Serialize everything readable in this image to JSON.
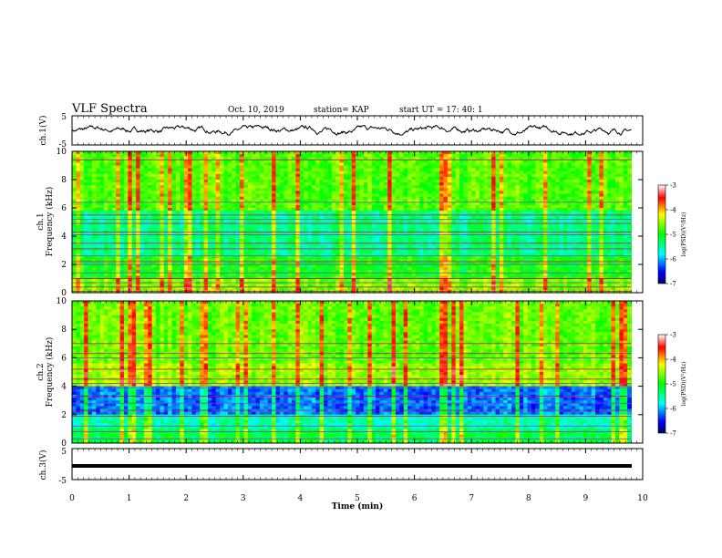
{
  "header": {
    "title": "VLF Spectra",
    "date": "Oct. 10, 2019",
    "station": "station= KAP",
    "start_ut": "start  UT  =    17: 40: 1"
  },
  "chart_data": [
    {
      "type": "line",
      "name": "ch1-waveform",
      "ylabel": "ch.1(V)",
      "ylim": [
        -5,
        5
      ],
      "yticks": [
        "5",
        "-5"
      ],
      "xlim": [
        0,
        10
      ],
      "description_value_range": [
        -1.0,
        1.2
      ]
    },
    {
      "type": "heatmap",
      "name": "ch1-spectrogram",
      "ylabel_top": "ch.1",
      "ylabel": "Frequency (kHz)",
      "ylim": [
        0,
        10
      ],
      "yticks": [
        "0",
        "2",
        "4",
        "6",
        "8",
        "10"
      ],
      "xlim": [
        0,
        9.8
      ],
      "colorbar": {
        "label": "log(PSD)(V²/Hz)",
        "range": [
          -7,
          -3
        ],
        "ticks": [
          "-3",
          "-4",
          "-5",
          "-6",
          "-7"
        ]
      },
      "bands_khz": [
        0.1,
        0.4,
        0.7,
        1.0,
        1.4,
        2.0,
        2.2,
        2.6,
        3.1,
        3.5,
        4.1,
        4.3,
        4.9,
        5.2,
        5.5,
        6.4,
        9.4
      ]
    },
    {
      "type": "heatmap",
      "name": "ch2-spectrogram",
      "ylabel_top": "ch.2",
      "ylabel": "Frequency (kHz)",
      "ylim": [
        0,
        10
      ],
      "yticks": [
        "0",
        "2",
        "4",
        "6",
        "8",
        "10"
      ],
      "xlim": [
        0,
        9.8
      ],
      "colorbar": {
        "label": "log(PSD)(V²/Hz)",
        "range": [
          -7,
          -3
        ],
        "ticks": [
          "-3",
          "-4",
          "-5",
          "-6",
          "-7"
        ]
      },
      "bands_khz": [
        0.3,
        0.8,
        1.2,
        1.9,
        2.3,
        2.8,
        3.3,
        3.9,
        4.2,
        4.5,
        5.2,
        6.0,
        6.3,
        7.0
      ]
    },
    {
      "type": "line",
      "name": "ch3-waveform",
      "ylabel": "ch.3(V)",
      "ylim": [
        -5,
        5
      ],
      "yticks": [
        "5",
        "-5"
      ],
      "xlim": [
        0,
        9.8
      ],
      "constant_value": 0
    }
  ],
  "xaxis": {
    "label": "Time (min)",
    "ticks": [
      "0",
      "1",
      "2",
      "3",
      "4",
      "5",
      "6",
      "7",
      "8",
      "9",
      "10"
    ]
  }
}
